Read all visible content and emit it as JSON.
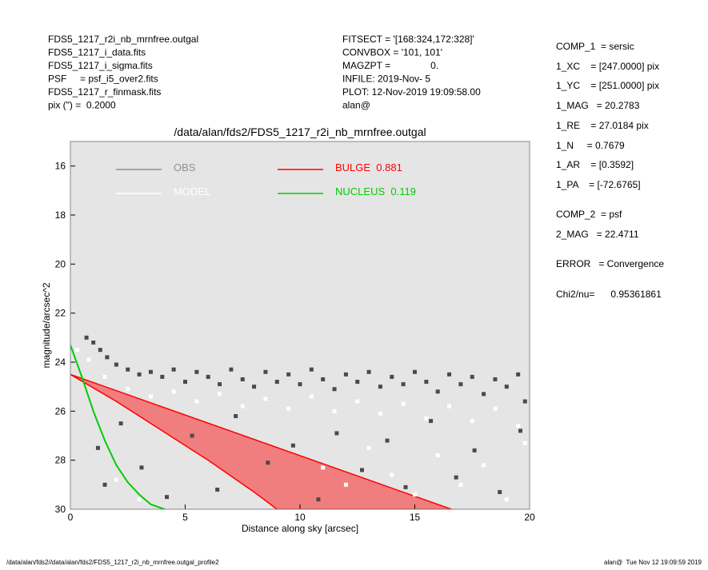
{
  "header": {
    "left": [
      "FDS5_1217_r2i_nb_mrnfree.outgal",
      "FDS5_1217_i_data.fits",
      "FDS5_1217_i_sigma.fits",
      "PSF     = psf_i5_over2.fits",
      "FDS5_1217_r_finmask.fits",
      "pix (\") =  0.2000"
    ],
    "middle": [
      "FITSECT = '[168:324,172:328]'",
      "CONVBOX = '101, 101'",
      "MAGZPT =               0.",
      "INFILE: 2019-Nov- 5",
      "PLOT: 12-Nov-2019 19:09:58.00",
      "alan@"
    ]
  },
  "info": [
    "COMP_1  = sersic",
    "1_XC    = [247.0000] pix",
    "1_YC    = [251.0000] pix",
    "1_MAG   = 20.2783",
    "1_RE    = 27.0184 pix",
    "1_N     = 0.7679",
    "1_AR    = [0.3592]",
    "1_PA    = [-72.6765]",
    "COMP_2  = psf",
    "2_MAG   = 22.4711",
    "ERROR   = Convergence",
    "Chi2/nu=      0.95361861"
  ],
  "footer": {
    "left": "/data/alan/fds2//data/alan/fds2/FDS5_1217_r2i_nb_mrnfree.outgal_profile2",
    "right": "alan@  Tue Nov 12 19:09:59 2019"
  },
  "chart_data": {
    "type": "scatter",
    "title": "/data/alan/fds2/FDS5_1217_r2i_nb_mrnfree.outgal",
    "x_label": "Distance along sky [arcsec]",
    "y_label": "magnitude/arcsec^2",
    "xlim": [
      0,
      20
    ],
    "xticks": [
      0,
      5,
      10,
      15,
      20
    ],
    "ylim": [
      15,
      30
    ],
    "yticks": [
      16,
      18,
      20,
      22,
      24,
      26,
      28,
      30
    ],
    "y_inverted": true,
    "background": "#e5e5e5",
    "series": [
      {
        "name": "OBS",
        "type": "scatter",
        "color": "#4a4a4a",
        "x": [
          0.7,
          1.0,
          1.3,
          1.6,
          2,
          2.5,
          3,
          3.5,
          4,
          4.5,
          5,
          5.5,
          6,
          6.5,
          7,
          7.5,
          8,
          8.5,
          9,
          9.5,
          10,
          10.5,
          11,
          11.5,
          12,
          12.5,
          13,
          13.5,
          14,
          14.5,
          15,
          15.5,
          16,
          16.5,
          17,
          17.5,
          18,
          18.5,
          19,
          19.5,
          19.8,
          1.2,
          1.5,
          2.2,
          3.1,
          4.2,
          5.3,
          6.4,
          7.2,
          8.6,
          9.7,
          10.8,
          11.6,
          12.7,
          13.8,
          14.6,
          15.7,
          16.8,
          17.6,
          18.7,
          19.6
        ],
        "values": [
          23.0,
          23.2,
          23.5,
          23.8,
          24.1,
          24.3,
          24.5,
          24.4,
          24.6,
          24.3,
          24.8,
          24.4,
          24.6,
          24.9,
          24.3,
          24.7,
          25.0,
          24.4,
          24.8,
          24.5,
          24.9,
          24.3,
          24.7,
          25.1,
          24.5,
          24.8,
          24.4,
          25.0,
          24.6,
          24.9,
          24.4,
          24.8,
          25.2,
          24.5,
          24.9,
          24.6,
          25.3,
          24.7,
          25.0,
          24.5,
          25.6,
          27.5,
          29.0,
          26.5,
          28.3,
          29.5,
          27.0,
          29.2,
          26.2,
          28.1,
          27.4,
          29.6,
          26.9,
          28.4,
          27.2,
          29.1,
          26.4,
          28.7,
          27.6,
          29.3,
          26.8
        ]
      },
      {
        "name": "MODEL",
        "type": "scatter",
        "color": "#ffffff",
        "x": [
          0.3,
          0.8,
          1.5,
          2.5,
          3.5,
          4.5,
          5.5,
          6.5,
          7.5,
          8.5,
          9.5,
          10.5,
          11.5,
          12.5,
          13.5,
          14.5,
          15.5,
          16.5,
          17.5,
          18.5,
          19.5,
          13,
          14,
          15,
          16,
          17,
          18,
          19,
          19.8,
          12,
          11,
          3,
          2
        ],
        "values": [
          23.5,
          23.9,
          24.6,
          25.1,
          25.4,
          25.2,
          25.6,
          25.3,
          25.8,
          25.5,
          25.9,
          25.4,
          26.0,
          25.6,
          26.1,
          25.7,
          26.3,
          25.8,
          26.4,
          25.9,
          26.6,
          27.5,
          28.6,
          29.4,
          27.8,
          29.0,
          28.2,
          29.6,
          27.3,
          29.0,
          28.3,
          29.6,
          28.8
        ]
      },
      {
        "name": "BULGE  0.881",
        "type": "area",
        "color": "#ff0000",
        "x": [
          0,
          2,
          4,
          6,
          8,
          9,
          16.6
        ],
        "values": [
          24.5,
          25.6,
          26.8,
          28.0,
          29.3,
          30,
          30
        ]
      },
      {
        "name": "NUCLEUS  0.119",
        "type": "line",
        "color": "#00cc00",
        "x": [
          0,
          0.5,
          1,
          1.5,
          2,
          2.5,
          3,
          3.5,
          4.1
        ],
        "values": [
          23.3,
          24.6,
          26.0,
          27.2,
          28.2,
          28.9,
          29.4,
          29.8,
          30
        ]
      }
    ]
  }
}
